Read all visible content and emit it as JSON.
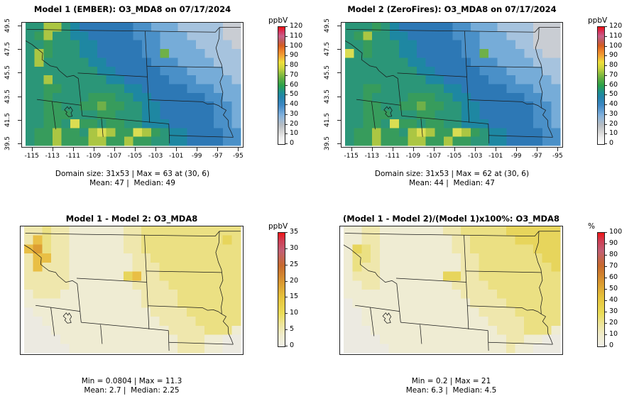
{
  "chart_data": {
    "type": "heatmap",
    "layout": "2x2 map comparison figure",
    "axes": {
      "x_ticks": [
        -115,
        -113,
        -111,
        -109,
        -107,
        -105,
        -103,
        -101,
        -99,
        -97,
        -95
      ],
      "y_ticks": [
        39.5,
        41.5,
        43.5,
        45.5,
        47.5,
        49.5
      ],
      "xlim": [
        -115.6,
        -94.75
      ],
      "ylim": [
        39.3,
        49.75
      ]
    },
    "palettes": {
      "value": {
        "a": "#c9cdd3",
        "b": "#a6c3de",
        "c": "#76acd8",
        "d": "#4a90c8",
        "e": "#2d78b5",
        "f": "#1e87a2",
        "g": "#2b9678",
        "h": "#379c5c",
        "i": "#6fb049",
        "j": "#abc643",
        "k": "#dadd52"
      },
      "anomaly": {
        "p": "#eceae1",
        "q": "#efecd3",
        "r": "#efe7ad",
        "s": "#ebe083",
        "t": "#e7d55c",
        "u": "#e9bf45",
        "v": "#dd9e33"
      }
    },
    "gradients": {
      "value": [
        [
          0,
          "#ffffff"
        ],
        [
          0.06,
          "#ececec"
        ],
        [
          0.1,
          "#d8d8d8"
        ],
        [
          0.165,
          "#b6bcc2"
        ],
        [
          0.21,
          "#9cb8d4"
        ],
        [
          0.25,
          "#7fb0dc"
        ],
        [
          0.33,
          "#3f88c5"
        ],
        [
          0.4,
          "#2383ab"
        ],
        [
          0.44,
          "#1d8f94"
        ],
        [
          0.5,
          "#2aa14a"
        ],
        [
          0.56,
          "#62ae41"
        ],
        [
          0.6,
          "#8cbe3f"
        ],
        [
          0.65,
          "#cdd53d"
        ],
        [
          0.7,
          "#efdf3a"
        ],
        [
          0.75,
          "#f2a636"
        ],
        [
          0.8,
          "#ec7e28"
        ],
        [
          0.84,
          "#d45d20"
        ],
        [
          0.88,
          "#c25b5b"
        ],
        [
          0.92,
          "#c6608a"
        ],
        [
          0.96,
          "#d63560"
        ],
        [
          1,
          "#ef0d0d"
        ]
      ],
      "anomaly": [
        [
          0,
          "#f0efe8"
        ],
        [
          0.1,
          "#f0eccd"
        ],
        [
          0.2,
          "#eee598"
        ],
        [
          0.29,
          "#ebdd58"
        ],
        [
          0.43,
          "#e6c33c"
        ],
        [
          0.57,
          "#d99630"
        ],
        [
          0.71,
          "#c76a2e"
        ],
        [
          0.84,
          "#c25f74"
        ],
        [
          0.93,
          "#cf3f55"
        ],
        [
          1,
          "#f01416"
        ]
      ]
    },
    "panels": [
      {
        "id": "model1",
        "title": "Model 1 (EMBER): O3_MDA8 on 07/17/2024",
        "colorbar": {
          "unit": "ppbV",
          "min": 0,
          "max": 120,
          "step": 10,
          "gradient": "value"
        },
        "stats": [
          "Domain size: 31x53 | Max = 63 at (30, 6)",
          "Mean: 47 |  Median: 49"
        ],
        "has_axes": true,
        "palette": "value",
        "rows": [
          "ggjjgfeeeeeeddcccbbbbbaa",
          "ghjggffeeeeedddcccbbbbaa",
          "gghgggffeeeeeddccccbbbba",
          "gjhgggffeeeeeddiccccbbbb",
          "gjgggggffeeeeedddccccbbb",
          "ggggggggffeeeeedddccccbb",
          "ggjggggggffeeeeedddccccb",
          "gghhgggggggffeeeeedddccc",
          "gghgggghhhggffeeeeeeddcc",
          "gghhgghhihhggffeeeeeeddc",
          "gghhhggghhgggffeeeeeeddc",
          "gghhgkhhghhggfffeeeeeddc",
          "ghhjhhgjkjhhkjhgffeeeedd",
          "ghhjhhhjjhhjhhggffeeeedd"
        ]
      },
      {
        "id": "model2",
        "title": "Model 2 (ZeroFires): O3_MDA8 on 07/17/2024",
        "colorbar": {
          "unit": "ppbV",
          "min": 0,
          "max": 120,
          "step": 10,
          "gradient": "value"
        },
        "stats": [
          "Domain size: 31x53 | Max = 62 at (30, 6)",
          "Mean: 44 |  Median: 47"
        ],
        "has_axes": true,
        "palette": "value",
        "rows": [
          "ggghgfeeeeeeddcccbbbbaaa",
          "ghjggffeeeeedddcccbbbaaa",
          "gghgggffeeeeeddccccbbaaa",
          "kghgggffeeeeeddiccccbbaa",
          "gggggggffeeeeedddccccbbb",
          "ggggggggffeeeeedddccccbb",
          "gggggggggffeeeeedddccccb",
          "gghhgggggggffeeeeedddccc",
          "gghgggghhhggffeeeeeeddcc",
          "gghhgghhihhggffeeeeeeddc",
          "gghhhggghhgggffeeeeeeddc",
          "gghhgkhhghhggfffeeeeeddc",
          "ghhjhhgjkjhhkjhgffeeeedd",
          "ghhjhhhjjhhjhhggffeeeedd"
        ]
      },
      {
        "id": "difference",
        "title": "Model 1 - Model 2: O3_MDA8",
        "colorbar": {
          "unit": "ppbV",
          "min": 0,
          "max": 35,
          "step": 5,
          "gradient": "anomaly"
        },
        "stats": [
          "Min = 0.0804 | Max = 11.3",
          "Mean: 2.7 |  Median: 2.25"
        ],
        "has_axes": false,
        "palette": "anomaly",
        "rows": [
          "rrsrrqqqqqqrrsssssssssss",
          "rusrrqqqqqqrrsssssssssts",
          "uvsrrqqqqqqrrsssssssssss",
          "ruurrqqqqqqqrrssssssssss",
          "rurrrqqqqqqqrrrsssssssss",
          "rrrrrqqqqqqturrsssssssss",
          "rrrrrqqqqqqqrrrrssssssss",
          "qrrrqqqqqqqqqrrrrsssssss",
          "qqqqqqqqqqqqqrrrrsssssss",
          "pqqqqqqqqqqqqqrrrrssssss",
          "ppqqqqqqqqqqqqqrrrrsssss",
          "pppqqqqqqqqqqqqqrrrrsssq",
          "ppppqqqqqqqqqqqqqrrrqqpp",
          "pppppqqqqqqqqqqqqrrrqqpp"
        ]
      },
      {
        "id": "percent-difference",
        "title": "(Model 1 - Model 2)/(Model 1)x100%: O3_MDA8",
        "colorbar": {
          "unit": "%",
          "min": 0,
          "max": 100,
          "step": 10,
          "gradient": "anomaly"
        },
        "stats": [
          "Min = 0.2 | Max = 21",
          "Mean: 6.3 |  Median: 4.5"
        ],
        "has_axes": false,
        "palette": "anomaly",
        "rows": [
          "qqrrqqqqqqqrrssssstttttt",
          "qqrrqqqqqqqqrrsssssttttt",
          "qtsrqqqqqqqqrrsssssssttt",
          "qssrqqqqqqqqqrrssssssstt",
          "qsrrqqqqqqqqqrrsssssssst",
          "qrrrqqqqqqqttrrsssssssss",
          "qqrrqqqqqqqqrrrrssssssss",
          "qqqqqqqqqqqqqrrrrsssssss",
          "pqqqqqqqqqqqqqrrrrssssss",
          "ppqqqqqqqqqqqqqrrrrsssss",
          "ppqqqqqqqqqqqqqqrrrrssss",
          "pppqqqqqqqqqqqqqqrrrsssq",
          "ppppqqqqqqqqqqqqqqrrqqpp",
          "pppppqqqqqqqqqqqqqrqqppp"
        ]
      }
    ]
  }
}
